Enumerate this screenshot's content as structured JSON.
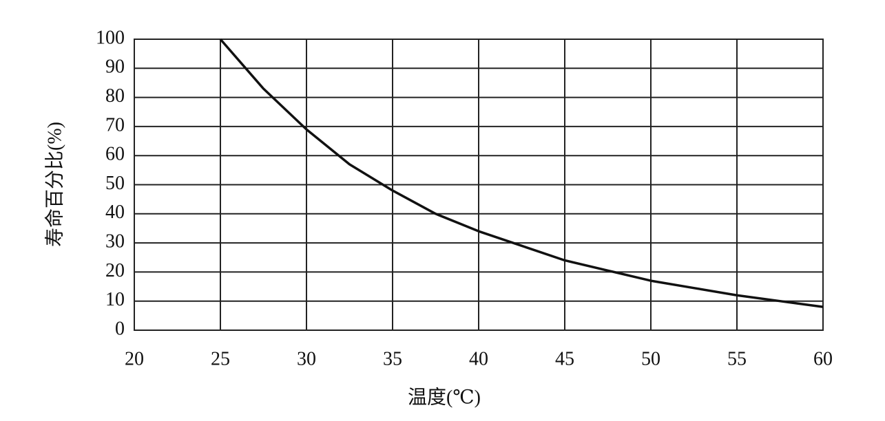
{
  "chart_data": {
    "type": "line",
    "x_label": "温度(℃)",
    "y_label": "寿命百分比(%)",
    "x": [
      25,
      27.5,
      30,
      32.5,
      35,
      37.5,
      40,
      42.5,
      45,
      47.5,
      50,
      52.5,
      55,
      57.5,
      60
    ],
    "values": [
      100,
      83,
      69,
      57,
      48,
      40,
      34,
      29,
      24,
      20.5,
      17,
      14.5,
      12,
      10,
      8
    ],
    "color": "#111111",
    "xlim": [
      20,
      60
    ],
    "xticks": [
      20,
      25,
      30,
      35,
      40,
      45,
      50,
      55,
      60
    ],
    "ylim": [
      0,
      100
    ],
    "yticks": [
      0,
      10,
      20,
      30,
      40,
      50,
      60,
      70,
      80,
      90,
      100
    ],
    "grid": true
  }
}
